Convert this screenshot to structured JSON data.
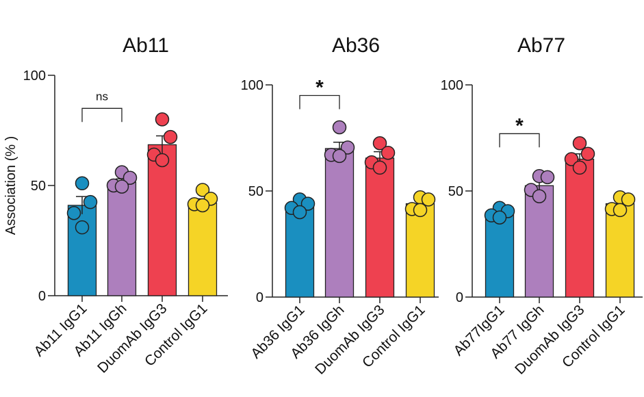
{
  "chart_data": {
    "type": "bar",
    "ylabel": "Association (% )",
    "colors": [
      "#1a8fc0",
      "#ad7fbd",
      "#ee4150",
      "#f5d426"
    ],
    "panels": [
      {
        "title": "Ab11",
        "ylim": [
          0,
          100
        ],
        "yticks": [
          "0",
          "50",
          "100"
        ],
        "categories": [
          "Ab11 IgG1",
          "Ab11 IgGh",
          "DuomAb IgG3",
          "Control IgG1"
        ],
        "values": [
          41,
          51.5,
          68.5,
          42
        ],
        "errors": [
          4,
          1.5,
          4,
          2
        ],
        "points": [
          [
            51,
            42.5,
            37.5,
            31
          ],
          [
            56,
            53.5,
            50,
            49.5
          ],
          [
            80,
            72,
            64,
            61.5
          ],
          [
            48,
            44,
            41.5,
            41
          ]
        ],
        "significance": {
          "label": "ns",
          "from": 0,
          "to": 1,
          "level": 85
        }
      },
      {
        "title": "Ab36",
        "ylim": [
          0,
          100
        ],
        "yticks": [
          "0",
          "50",
          "100"
        ],
        "categories": [
          "Ab36 IgG1",
          "Ab36 IgGh",
          "DuomAb IgG3",
          "Control IgG1"
        ],
        "values": [
          42.5,
          70,
          65.5,
          44
        ],
        "errors": [
          1.5,
          3,
          3,
          2
        ],
        "points": [
          [
            46,
            44,
            42,
            40
          ],
          [
            80,
            70.5,
            67,
            66.5
          ],
          [
            72.5,
            68,
            63.5,
            61
          ],
          [
            47,
            46,
            41.5,
            41
          ]
        ],
        "significance": {
          "label": "*",
          "from": 0,
          "to": 1,
          "level": 95
        }
      },
      {
        "title": "Ab77",
        "ylim": [
          0,
          100
        ],
        "yticks": [
          "0",
          "50",
          "100"
        ],
        "categories": [
          "Ab77IgG1",
          "Ab77 IgGh",
          "DuomAb IgG3",
          "Control IgG1"
        ],
        "values": [
          40,
          52.5,
          65,
          44
        ],
        "errors": [
          1.5,
          3,
          2.5,
          2.5
        ],
        "points": [
          [
            42,
            40.5,
            38.5,
            37.5
          ],
          [
            57,
            56.5,
            50.5,
            47.5
          ],
          [
            72.5,
            67.5,
            65,
            61
          ],
          [
            47,
            46,
            41.5,
            41
          ]
        ],
        "significance": {
          "label": "*",
          "from": 0,
          "to": 1,
          "level": 77
        }
      }
    ]
  }
}
